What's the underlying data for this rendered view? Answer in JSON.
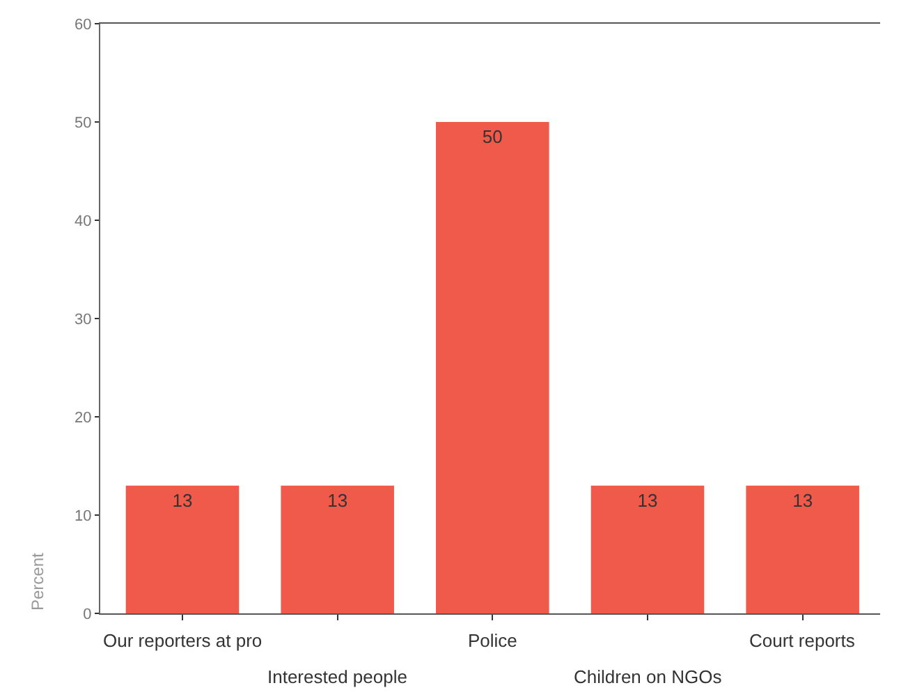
{
  "chart_data": {
    "type": "bar",
    "ylabel": "Percent",
    "categories": [
      "Our reporters at pro",
      "Interested people",
      "Police",
      "Children on NGOs",
      "Court reports"
    ],
    "values": [
      13,
      13,
      50,
      13,
      13
    ],
    "color": "#f05a4a",
    "ylim": [
      0,
      60
    ],
    "yticks": [
      0,
      10,
      20,
      30,
      40,
      50,
      60
    ],
    "data_labels": true
  }
}
